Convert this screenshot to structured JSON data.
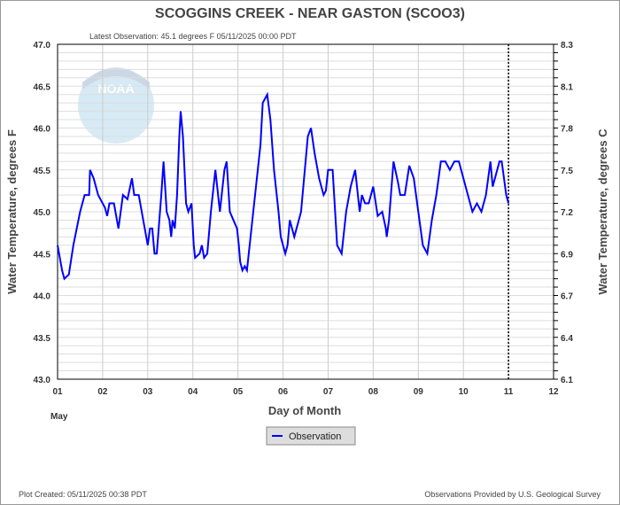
{
  "chart_data": {
    "type": "line",
    "title": "SCOGGINS CREEK - NEAR GASTON  (SCOO3)",
    "subtitle": "Latest Observation: 45.1 degrees F 05/11/2025 00:00 PDT",
    "xlabel": "Day of Month",
    "x_month_label": "May",
    "ylabel": "Water Temperature, degrees F",
    "y2label": "Water Temperature, degrees C",
    "xlim": [
      1,
      12
    ],
    "ylim": [
      43.0,
      47.0
    ],
    "x_ticks": [
      "01",
      "02",
      "03",
      "04",
      "05",
      "06",
      "07",
      "08",
      "09",
      "10",
      "11",
      "12"
    ],
    "y_ticks": [
      "43.0",
      "43.5",
      "44.0",
      "44.5",
      "45.0",
      "45.5",
      "46.0",
      "46.5",
      "47.0"
    ],
    "y2_ticks": [
      "6.1",
      "6.4",
      "6.7",
      "6.9",
      "7.2",
      "7.5",
      "7.8",
      "8.1",
      "8.3"
    ],
    "grid": true,
    "current_time_marker_day": 11,
    "legend": {
      "position": "bottom-center",
      "entries": [
        "Observation"
      ]
    },
    "series": [
      {
        "name": "Observation",
        "color": "#0000ff",
        "x": [
          1.0,
          1.1,
          1.15,
          1.25,
          1.35,
          1.5,
          1.6,
          1.7,
          1.72,
          1.8,
          1.9,
          2.0,
          2.05,
          2.1,
          2.15,
          2.25,
          2.35,
          2.45,
          2.55,
          2.65,
          2.7,
          2.8,
          2.9,
          3.0,
          3.05,
          3.1,
          3.15,
          3.2,
          3.3,
          3.35,
          3.42,
          3.48,
          3.52,
          3.55,
          3.6,
          3.65,
          3.7,
          3.73,
          3.78,
          3.85,
          3.9,
          3.97,
          4.02,
          4.05,
          4.15,
          4.2,
          4.25,
          4.32,
          4.4,
          4.5,
          4.6,
          4.7,
          4.75,
          4.82,
          4.9,
          4.98,
          5.02,
          5.05,
          5.1,
          5.15,
          5.2,
          5.3,
          5.4,
          5.5,
          5.55,
          5.65,
          5.72,
          5.8,
          5.9,
          5.95,
          6.05,
          6.1,
          6.15,
          6.25,
          6.4,
          6.5,
          6.55,
          6.62,
          6.7,
          6.8,
          6.9,
          6.95,
          7.0,
          7.1,
          7.2,
          7.3,
          7.4,
          7.5,
          7.6,
          7.7,
          7.75,
          7.82,
          7.9,
          8.0,
          8.1,
          8.2,
          8.28,
          8.3,
          8.35,
          8.45,
          8.55,
          8.6,
          8.7,
          8.8,
          8.9,
          9.0,
          9.1,
          9.2,
          9.3,
          9.4,
          9.5,
          9.6,
          9.7,
          9.8,
          9.9,
          10.0,
          10.1,
          10.2,
          10.3,
          10.4,
          10.5,
          10.6,
          10.65,
          10.7,
          10.8,
          10.85,
          10.95,
          11.0
        ],
        "y": [
          44.6,
          44.3,
          44.2,
          44.25,
          44.6,
          45.0,
          45.2,
          45.2,
          45.5,
          45.4,
          45.2,
          45.1,
          45.05,
          44.95,
          45.1,
          45.1,
          44.8,
          45.2,
          45.15,
          45.4,
          45.2,
          45.2,
          44.9,
          44.6,
          44.8,
          44.8,
          44.5,
          44.5,
          45.2,
          45.6,
          45.0,
          44.9,
          44.7,
          44.9,
          44.8,
          45.2,
          45.9,
          46.2,
          45.9,
          45.1,
          45.0,
          45.1,
          44.6,
          44.45,
          44.5,
          44.6,
          44.45,
          44.5,
          45.0,
          45.5,
          45.0,
          45.5,
          45.6,
          45.0,
          44.9,
          44.8,
          44.6,
          44.4,
          44.3,
          44.35,
          44.3,
          44.8,
          45.3,
          45.8,
          46.3,
          46.4,
          46.1,
          45.5,
          45.0,
          44.7,
          44.5,
          44.6,
          44.9,
          44.7,
          45.0,
          45.6,
          45.9,
          46.0,
          45.7,
          45.4,
          45.2,
          45.25,
          45.5,
          45.5,
          44.6,
          44.5,
          45.0,
          45.3,
          45.5,
          45.0,
          45.2,
          45.1,
          45.1,
          45.3,
          44.95,
          45.0,
          44.8,
          44.7,
          44.9,
          45.6,
          45.35,
          45.2,
          45.2,
          45.55,
          45.4,
          45.0,
          44.6,
          44.5,
          44.9,
          45.2,
          45.6,
          45.6,
          45.5,
          45.6,
          45.6,
          45.4,
          45.2,
          45.0,
          45.1,
          45.0,
          45.2,
          45.6,
          45.3,
          45.4,
          45.6,
          45.6,
          45.2,
          45.1
        ]
      }
    ]
  },
  "footer": {
    "left": "Plot Created: 05/11/2025 00:38 PDT",
    "right": "Observations Provided by U.S. Geological Survey"
  },
  "watermark": "NOAA"
}
